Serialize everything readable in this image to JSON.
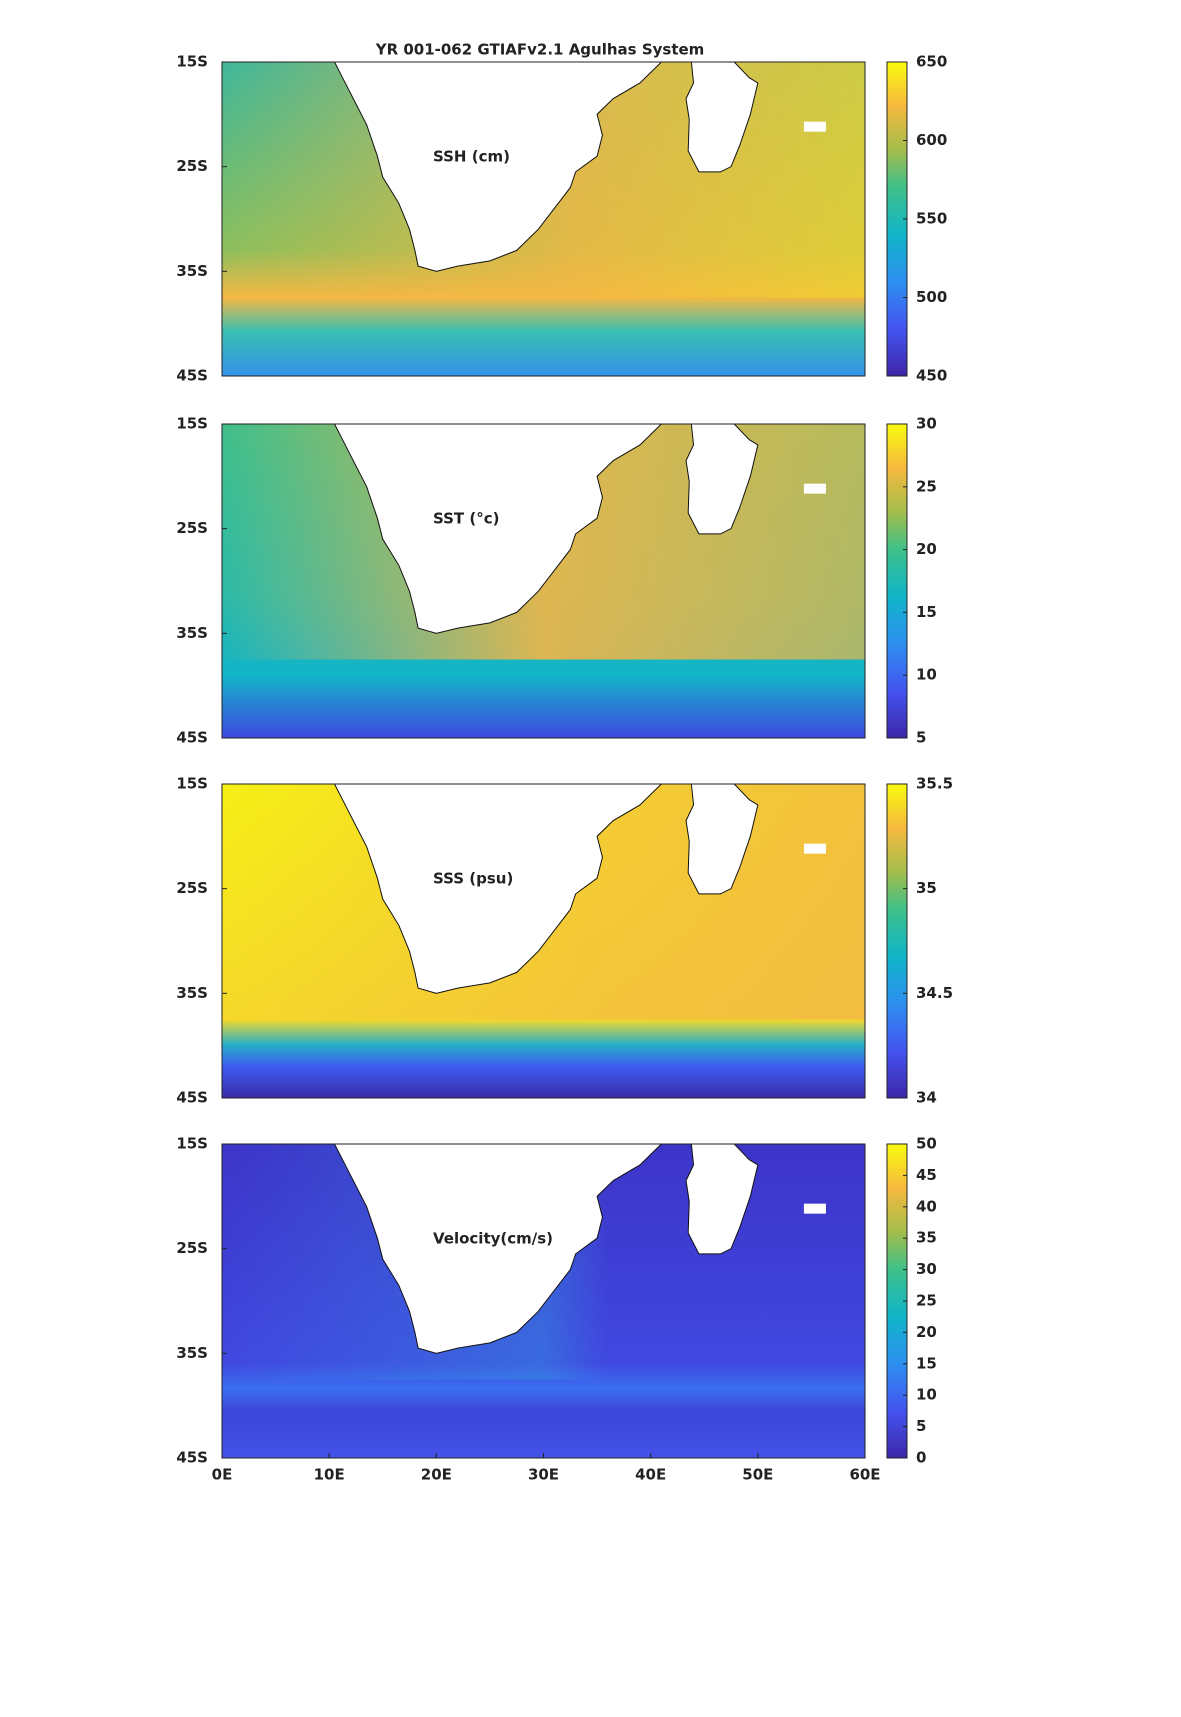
{
  "chart_data": [
    {
      "type": "map",
      "title": "YR 001-062 GTIAFv2.1 Agulhas System",
      "label": "SSH (cm)",
      "ylim": [
        -45,
        -15
      ],
      "yticks": [
        {
          "value": -15,
          "label": "15S"
        },
        {
          "value": -25,
          "label": "25S"
        },
        {
          "value": -35,
          "label": "35S"
        },
        {
          "value": -45,
          "label": "45S"
        }
      ],
      "clim": [
        450,
        650
      ],
      "cticks": [
        450,
        500,
        550,
        600,
        650
      ]
    },
    {
      "type": "map",
      "label": "SST (°c)",
      "ylim": [
        -45,
        -15
      ],
      "yticks": [
        {
          "value": -15,
          "label": "15S"
        },
        {
          "value": -25,
          "label": "25S"
        },
        {
          "value": -35,
          "label": "35S"
        },
        {
          "value": -45,
          "label": "45S"
        }
      ],
      "clim": [
        5,
        30
      ],
      "cticks": [
        5,
        10,
        15,
        20,
        25,
        30
      ]
    },
    {
      "type": "map",
      "label": "SSS (psu)",
      "ylim": [
        -45,
        -15
      ],
      "yticks": [
        {
          "value": -15,
          "label": "15S"
        },
        {
          "value": -25,
          "label": "25S"
        },
        {
          "value": -35,
          "label": "35S"
        },
        {
          "value": -45,
          "label": "45S"
        }
      ],
      "clim": [
        34,
        35.5
      ],
      "cticks": [
        34,
        34.5,
        35,
        35.5
      ]
    },
    {
      "type": "map",
      "label": "Velocity(cm/s)",
      "ylim": [
        -45,
        -15
      ],
      "yticks": [
        {
          "value": -15,
          "label": "15S"
        },
        {
          "value": -25,
          "label": "25S"
        },
        {
          "value": -35,
          "label": "35S"
        },
        {
          "value": -45,
          "label": "45S"
        }
      ],
      "xlim": [
        0,
        60
      ],
      "xticks": [
        {
          "value": 0,
          "label": "0E"
        },
        {
          "value": 10,
          "label": "10E"
        },
        {
          "value": 20,
          "label": "20E"
        },
        {
          "value": 30,
          "label": "30E"
        },
        {
          "value": 40,
          "label": "40E"
        },
        {
          "value": 50,
          "label": "50E"
        },
        {
          "value": 60,
          "label": "60E"
        }
      ],
      "clim": [
        0,
        50
      ],
      "cticks": [
        0,
        5,
        10,
        15,
        20,
        25,
        30,
        35,
        40,
        45,
        50
      ]
    }
  ]
}
